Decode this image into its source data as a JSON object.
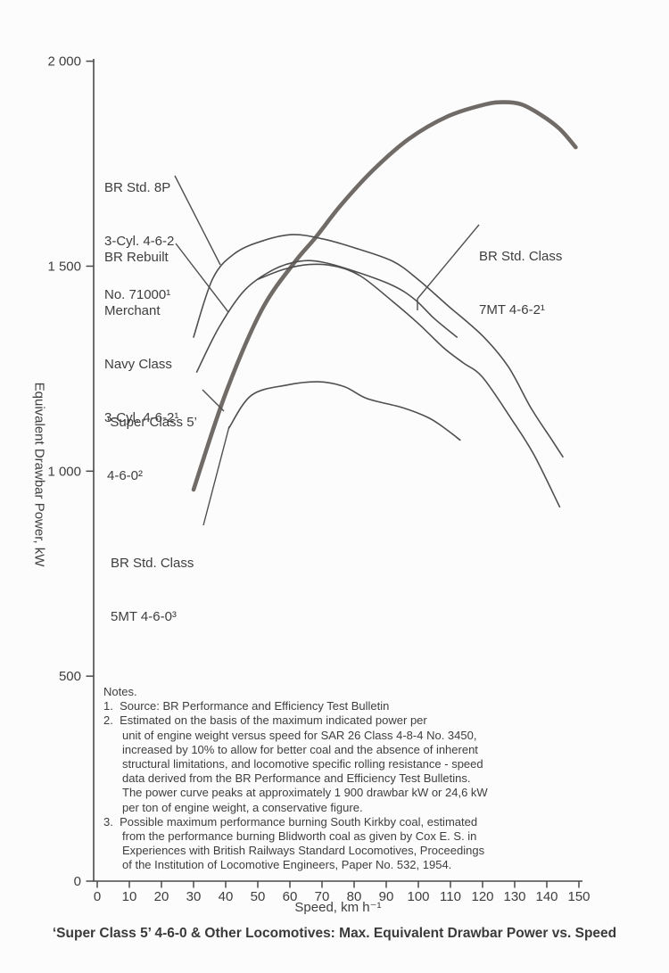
{
  "figure": {
    "title": "‘Super Class 5’ 4-6-0 & Other Locomotives: Max. Equivalent Drawbar Power vs. Speed",
    "x_axis_label": "Speed, km h⁻¹",
    "y_axis_label": "Equivalent Drawbar Power, kW"
  },
  "annotations": [
    {
      "id": "br-std-8p",
      "lines": [
        "BR Std. 8P",
        "3-Cyl. 4-6-2",
        "No. 71000¹"
      ]
    },
    {
      "id": "br-rebuilt-mn",
      "lines": [
        "BR Rebuilt",
        "Merchant",
        "Navy Class",
        "3-Cyl. 4-6-2¹"
      ]
    },
    {
      "id": "br-std-7mt",
      "lines": [
        "BR Std. Class",
        "7MT 4-6-2¹"
      ]
    },
    {
      "id": "super-class-5",
      "lines": [
        "‘Super Class 5’",
        "4-6-0²"
      ]
    },
    {
      "id": "br-std-5mt",
      "lines": [
        "BR Std. Class",
        "5MT 4-6-0³"
      ]
    }
  ],
  "notes": {
    "lines": [
      {
        "text": "Notes.",
        "indent": 0
      },
      {
        "text": "1.  Source: BR Performance and Efficiency Test Bulletin",
        "indent": 0
      },
      {
        "text": "2.  Estimated on the basis of the maximum indicated power per",
        "indent": 0
      },
      {
        "text": "unit of engine weight versus speed for SAR 26 Class 4-8-4 No. 3450,",
        "indent": 1
      },
      {
        "text": "increased by 10% to allow for better coal and the absence of inherent",
        "indent": 1
      },
      {
        "text": "structural limitations, and locomotive specific rolling resistance - speed",
        "indent": 1
      },
      {
        "text": "data derived from the BR Performance and Efficiency Test Bulletins.",
        "indent": 1
      },
      {
        "text": "The power curve peaks at approximately 1 900 drawbar kW or 24,6 kW",
        "indent": 1
      },
      {
        "text": "per ton of engine weight, a conservative figure.",
        "indent": 1
      },
      {
        "text": "3.  Possible maximum performance burning South Kirkby coal, estimated",
        "indent": 0
      },
      {
        "text": "from the performance burning Blidworth coal as given by Cox E. S. in",
        "indent": 1
      },
      {
        "text": "Experiences with British Railways Standard Locomotives, Proceedings",
        "indent": 1
      },
      {
        "text": "of the Institution of Locomotive Engineers, Paper No. 532, 1954.",
        "indent": 1
      }
    ]
  },
  "colors": {
    "curve_thin": "#4f4f4f",
    "curve_thick": "#716b67",
    "axis": "#4a4a4a",
    "text": "#3e3e3e"
  },
  "chart_data": {
    "type": "line",
    "title": "‘Super Class 5’ 4-6-0 & Other Locomotives: Max. Equivalent Drawbar Power vs. Speed",
    "xlabel": "Speed, km h⁻¹",
    "ylabel": "Equivalent Drawbar Power, kW",
    "xlim": [
      0,
      150
    ],
    "ylim": [
      0,
      2000
    ],
    "grid": false,
    "legend": "annotated labels with leader lines",
    "x_ticks": [
      0,
      10,
      20,
      30,
      40,
      50,
      60,
      70,
      80,
      90,
      100,
      110,
      120,
      130,
      140,
      150
    ],
    "y_ticks": [
      {
        "value": 0,
        "label": "0"
      },
      {
        "value": 500,
        "label": "500"
      },
      {
        "value": 1000,
        "label": "1 000"
      },
      {
        "value": 1500,
        "label": "1 500"
      },
      {
        "value": 2000,
        "label": "2 000"
      }
    ],
    "series": [
      {
        "id": "super-class-5-estimated",
        "name": "'Super Class 5' 4-6-0 (estimated, note 2)",
        "thick": true,
        "points": [
          [
            30,
            955
          ],
          [
            40,
            1190
          ],
          [
            51,
            1390
          ],
          [
            61,
            1505
          ],
          [
            68,
            1570
          ],
          [
            76,
            1650
          ],
          [
            86,
            1735
          ],
          [
            97,
            1810
          ],
          [
            109,
            1865
          ],
          [
            120,
            1893
          ],
          [
            126,
            1900
          ],
          [
            132,
            1895
          ],
          [
            138,
            1870
          ],
          [
            144,
            1835
          ],
          [
            149,
            1790
          ]
        ]
      },
      {
        "id": "br-std-8p",
        "name": "BR Std. 8P 3-Cyl. 4-6-2 No. 71000 (note 1)",
        "thick": false,
        "points": [
          [
            30,
            1327
          ],
          [
            36,
            1470
          ],
          [
            43,
            1532
          ],
          [
            52,
            1563
          ],
          [
            61,
            1577
          ],
          [
            70,
            1567
          ],
          [
            80,
            1545
          ],
          [
            92,
            1512
          ],
          [
            100,
            1467
          ],
          [
            109,
            1405
          ],
          [
            120,
            1330
          ],
          [
            128,
            1255
          ],
          [
            135,
            1155
          ],
          [
            141,
            1083
          ],
          [
            145,
            1035
          ]
        ]
      },
      {
        "id": "br-rebuilt-merchant-navy",
        "name": "BR Rebuilt Merchant Navy Class 3-Cyl. 4-6-2 (note 1)",
        "thick": false,
        "points": [
          [
            31,
            1242
          ],
          [
            38,
            1352
          ],
          [
            46,
            1442
          ],
          [
            55,
            1492
          ],
          [
            63,
            1512
          ],
          [
            70,
            1510
          ],
          [
            80,
            1488
          ],
          [
            92,
            1453
          ],
          [
            99,
            1418
          ],
          [
            105,
            1372
          ],
          [
            112,
            1327
          ]
        ]
      },
      {
        "id": "br-std-7mt",
        "name": "BR Std. Class 7MT 4-6-2 (note 1)",
        "thick": false,
        "points": [
          [
            50,
            1468
          ],
          [
            58,
            1492
          ],
          [
            66,
            1504
          ],
          [
            74,
            1500
          ],
          [
            82,
            1476
          ],
          [
            92,
            1414
          ],
          [
            100,
            1360
          ],
          [
            108,
            1300
          ],
          [
            114,
            1264
          ],
          [
            120,
            1229
          ],
          [
            129,
            1127
          ],
          [
            136,
            1040
          ],
          [
            144,
            913
          ]
        ]
      },
      {
        "id": "br-std-5mt",
        "name": "BR Std. Class 5MT 4-6-0 (note 3)",
        "thick": false,
        "points": [
          [
            41,
            1105
          ],
          [
            48,
            1185
          ],
          [
            59,
            1210
          ],
          [
            69,
            1218
          ],
          [
            77,
            1206
          ],
          [
            84,
            1177
          ],
          [
            95,
            1155
          ],
          [
            103,
            1131
          ],
          [
            108,
            1106
          ],
          [
            113,
            1076
          ]
        ]
      }
    ]
  }
}
